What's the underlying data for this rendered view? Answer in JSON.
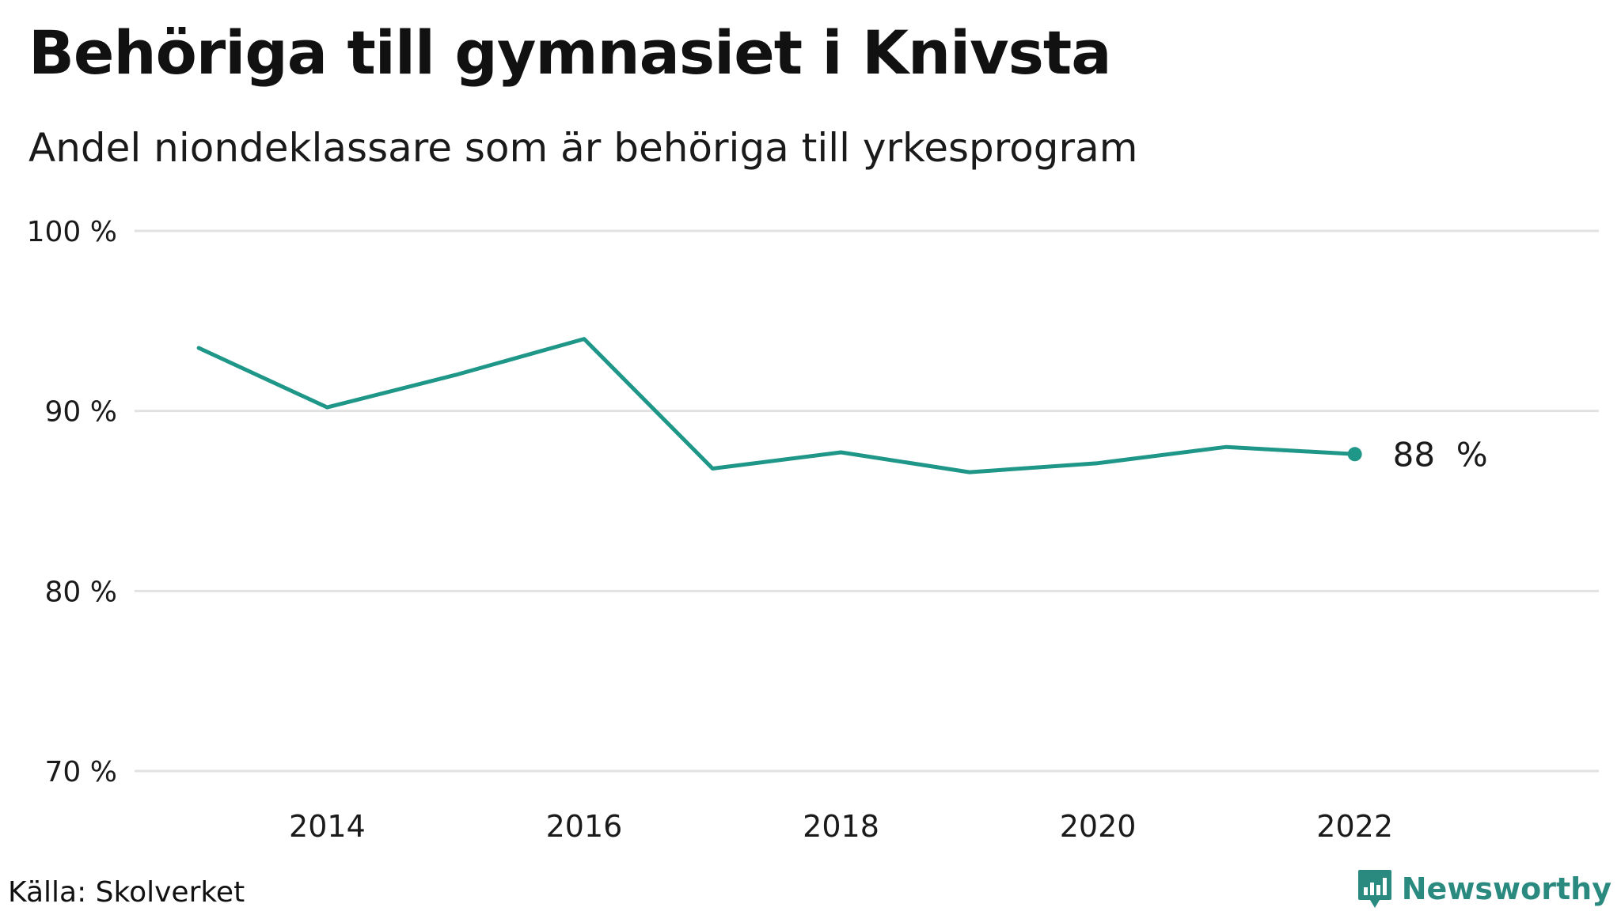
{
  "header": {
    "title": "Behöriga till gymnasiet i Knivsta",
    "subtitle": "Andel niondeklassare som är behöriga till yrkesprogram"
  },
  "footer": {
    "source": "Källa: Skolverket",
    "brand": "Newsworthy",
    "brand_icon": "bar-chart-icon"
  },
  "colors": {
    "line": "#1e9688",
    "grid": "#e2e2e2",
    "brand": "#2a8a80"
  },
  "chart_data": {
    "type": "line",
    "title": "Behöriga till gymnasiet i Knivsta",
    "subtitle": "Andel niondeklassare som är behöriga till yrkesprogram",
    "xlabel": "",
    "ylabel": "",
    "x": [
      2013,
      2014,
      2015,
      2016,
      2017,
      2018,
      2019,
      2020,
      2021,
      2022
    ],
    "series": [
      {
        "values": [
          93.5,
          90.2,
          92.0,
          94.0,
          86.8,
          87.7,
          86.6,
          87.1,
          88.0,
          87.6
        ]
      }
    ],
    "ylim": [
      70,
      100
    ],
    "xlim": [
      2012.5,
      2023.9
    ],
    "yticks": [
      70,
      80,
      90,
      100
    ],
    "ytick_labels": [
      "70 %",
      "80 %",
      "90 %",
      "100 %"
    ],
    "xticks": [
      2014,
      2016,
      2018,
      2020,
      2022
    ],
    "xtick_labels": [
      "2014",
      "2016",
      "2018",
      "2020",
      "2022"
    ],
    "end_label": {
      "value": "88",
      "unit": "%"
    },
    "grid": true,
    "legend": "none"
  }
}
